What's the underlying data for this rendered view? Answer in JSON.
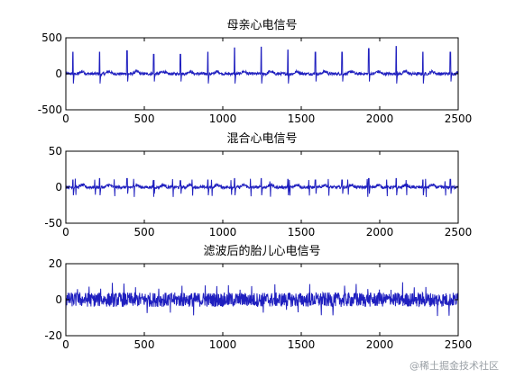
{
  "figure": {
    "background": "#ffffff",
    "axes_color": "#000000",
    "line_color": "#1f1fbf"
  },
  "chart_data": [
    {
      "type": "line",
      "title": "母亲心电信号",
      "xlim": [
        0,
        2500
      ],
      "ylim": [
        -500,
        500
      ],
      "x_ticks": [
        0,
        500,
        1000,
        1500,
        2000,
        2500
      ],
      "y_ticks": [
        -500,
        0,
        500
      ],
      "series": [
        {
          "peaks_x": [
            45,
            215,
            390,
            560,
            730,
            905,
            1075,
            1245,
            1415,
            1590,
            1760,
            1930,
            2105,
            2275,
            2450
          ],
          "peak_values": [
            300,
            300,
            320,
            270,
            270,
            300,
            360,
            370,
            330,
            300,
            300,
            350,
            380,
            300,
            300
          ],
          "trough_value": -180,
          "baseline": 0
        }
      ]
    },
    {
      "type": "line",
      "title": "混合心电信号",
      "xlim": [
        0,
        2500
      ],
      "ylim": [
        -50,
        50
      ],
      "x_ticks": [
        0,
        500,
        1000,
        1500,
        2000,
        2500
      ],
      "y_ticks": [
        -50,
        0,
        50
      ],
      "series": [
        {
          "peaks_x": [
            45,
            215,
            390,
            560,
            730,
            905,
            1075,
            1245,
            1415,
            1590,
            1760,
            1930,
            2105,
            2275,
            2450
          ],
          "peak_values": [
            10,
            12,
            12,
            10,
            9,
            10,
            12,
            12,
            11,
            10,
            10,
            12,
            12,
            10,
            11
          ],
          "trough_value": -15,
          "baseline": 0
        }
      ]
    },
    {
      "type": "line",
      "title": "滤波后的胎儿心电信号",
      "xlim": [
        0,
        2500
      ],
      "ylim": [
        -20,
        20
      ],
      "x_ticks": [
        0,
        500,
        1000,
        1500,
        2000,
        2500
      ],
      "y_ticks": [
        -20,
        0,
        20
      ],
      "series": [
        {
          "noise_amplitude": 4,
          "spike_amplitude": 9,
          "baseline": 0
        }
      ]
    }
  ],
  "watermark": "@稀土掘金技术社区"
}
